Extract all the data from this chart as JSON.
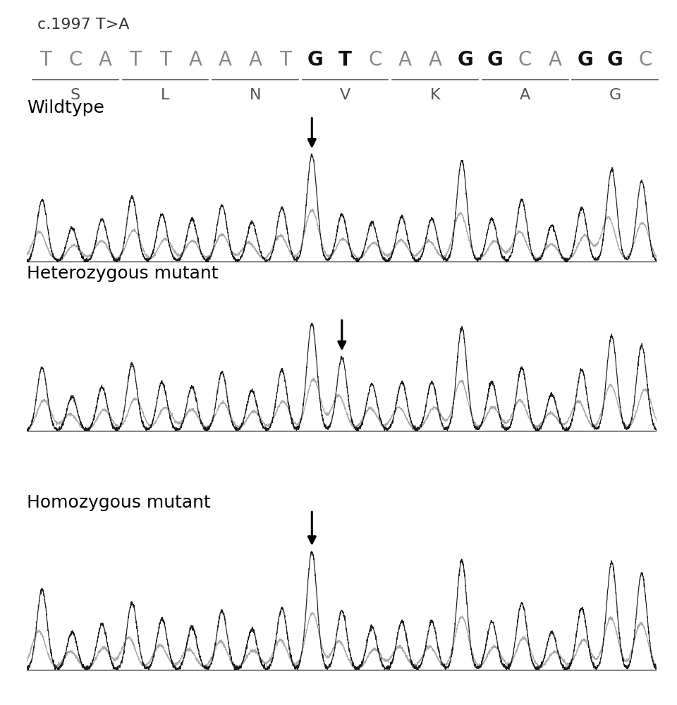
{
  "title": "c.1997 T>A",
  "sequence": [
    "T",
    "C",
    "A",
    "T",
    "T",
    "A",
    "A",
    "A",
    "T",
    "G",
    "T",
    "C",
    "A",
    "A",
    "G",
    "G",
    "C",
    "A",
    "G",
    "G",
    "C"
  ],
  "amino_acids": [
    {
      "aa": "S",
      "codons": [
        0,
        1,
        2
      ]
    },
    {
      "aa": "L",
      "codons": [
        3,
        4,
        5
      ]
    },
    {
      "aa": "N",
      "codons": [
        6,
        7,
        8
      ]
    },
    {
      "aa": "V",
      "codons": [
        9,
        10,
        11
      ]
    },
    {
      "aa": "K",
      "codons": [
        12,
        13,
        14
      ]
    },
    {
      "aa": "A",
      "codons": [
        15,
        16,
        17
      ]
    },
    {
      "aa": "G",
      "codons": [
        18,
        19,
        20
      ]
    }
  ],
  "bold_bases": [
    9,
    10,
    14,
    15,
    18,
    19
  ],
  "panel_labels": [
    "Wildtype",
    "Heterozygous mutant",
    "Homozygous mutant"
  ],
  "bg_color": "#ffffff",
  "seq_fontsize": 20,
  "aa_fontsize": 16,
  "label_fontsize": 18,
  "title_fontsize": 16,
  "wildtype_peaks": [
    0.55,
    0.3,
    0.38,
    0.58,
    0.42,
    0.38,
    0.5,
    0.35,
    0.48,
    0.95,
    0.42,
    0.35,
    0.4,
    0.38,
    0.9,
    0.38,
    0.55,
    0.32,
    0.48,
    0.82,
    0.72
  ],
  "heterozygous_peaks": [
    0.52,
    0.28,
    0.36,
    0.55,
    0.4,
    0.36,
    0.48,
    0.33,
    0.5,
    0.88,
    0.6,
    0.38,
    0.4,
    0.4,
    0.85,
    0.4,
    0.52,
    0.3,
    0.5,
    0.78,
    0.7
  ],
  "homozygous_peaks": [
    0.6,
    0.28,
    0.34,
    0.5,
    0.38,
    0.32,
    0.44,
    0.3,
    0.46,
    0.88,
    0.44,
    0.32,
    0.36,
    0.36,
    0.82,
    0.36,
    0.5,
    0.28,
    0.46,
    0.8,
    0.72
  ],
  "wt_arrow_idx": 9,
  "het_arrow_idx": 10,
  "hom_arrow_idx": 9
}
